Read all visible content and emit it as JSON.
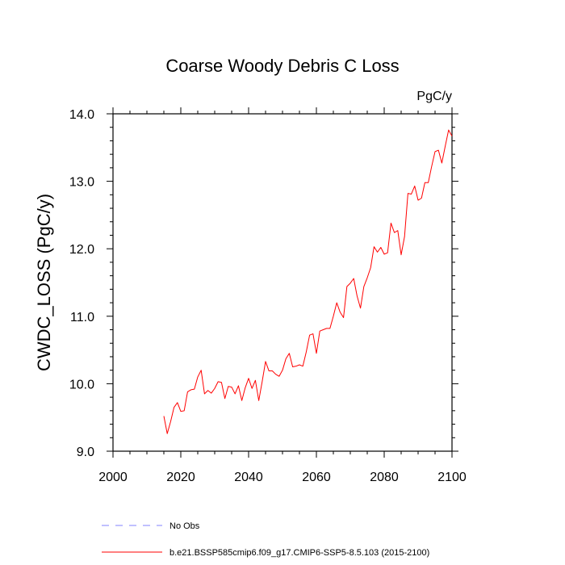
{
  "chart_data": {
    "type": "line",
    "title": "Coarse Woody Debris C Loss",
    "units": "PgC/y",
    "ylabel": "CWDC_LOSS  (PgC/y)",
    "xlabel": "",
    "xlim": [
      2000,
      2100
    ],
    "ylim": [
      9.0,
      14.0
    ],
    "x_ticks": [
      2000,
      2020,
      2040,
      2060,
      2080,
      2100
    ],
    "x_tick_labels": [
      "2000",
      "2020",
      "2040",
      "2060",
      "2080",
      "2100"
    ],
    "y_ticks": [
      9.0,
      10.0,
      11.0,
      12.0,
      13.0,
      14.0
    ],
    "y_tick_labels": [
      "9.0",
      "10.0",
      "11.0",
      "12.0",
      "13.0",
      "14.0"
    ],
    "series": [
      {
        "name": "b.e21.BSSP585cmip6.f09_g17.CMIP6-SSP5-8.5.103 (2015-2100)",
        "color": "#ff0000",
        "x": [
          2015,
          2016,
          2017,
          2018,
          2019,
          2020,
          2021,
          2022,
          2023,
          2024,
          2025,
          2026,
          2027,
          2028,
          2029,
          2030,
          2031,
          2032,
          2033,
          2034,
          2035,
          2036,
          2037,
          2038,
          2039,
          2040,
          2041,
          2042,
          2043,
          2044,
          2045,
          2046,
          2047,
          2048,
          2049,
          2050,
          2051,
          2052,
          2053,
          2054,
          2055,
          2056,
          2057,
          2058,
          2059,
          2060,
          2061,
          2062,
          2063,
          2064,
          2065,
          2066,
          2067,
          2068,
          2069,
          2070,
          2071,
          2072,
          2073,
          2074,
          2075,
          2076,
          2077,
          2078,
          2079,
          2080,
          2081,
          2082,
          2083,
          2084,
          2085,
          2086,
          2087,
          2088,
          2089,
          2090,
          2091,
          2092,
          2093,
          2094,
          2095,
          2096,
          2097,
          2098,
          2099,
          2100
        ],
        "values": [
          9.52,
          9.26,
          9.44,
          9.65,
          9.72,
          9.59,
          9.6,
          9.88,
          9.91,
          9.92,
          10.1,
          10.2,
          9.85,
          9.9,
          9.86,
          9.93,
          10.03,
          10.02,
          9.78,
          9.96,
          9.95,
          9.85,
          9.97,
          9.75,
          9.94,
          10.08,
          9.93,
          10.05,
          9.75,
          10.03,
          10.33,
          10.19,
          10.19,
          10.14,
          10.11,
          10.2,
          10.37,
          10.45,
          10.25,
          10.26,
          10.28,
          10.26,
          10.47,
          10.72,
          10.74,
          10.45,
          10.78,
          10.8,
          10.82,
          10.82,
          11.0,
          11.2,
          11.06,
          10.98,
          11.44,
          11.49,
          11.56,
          11.3,
          11.12,
          11.44,
          11.57,
          11.72,
          12.03,
          11.95,
          12.02,
          11.92,
          11.94,
          12.38,
          12.24,
          12.27,
          11.91,
          12.18,
          12.82,
          12.81,
          12.93,
          12.72,
          12.75,
          12.98,
          12.98,
          13.22,
          13.44,
          13.46,
          13.27,
          13.52,
          13.76,
          13.67
        ]
      }
    ],
    "legend": {
      "placement": "bottom",
      "entries": [
        {
          "label": "No Obs",
          "style": "dashed",
          "color": "#8080ff"
        },
        {
          "label": "b.e21.BSSP585cmip6.f09_g17.CMIP6-SSP5-8.5.103 (2015-2100)",
          "style": "solid",
          "color": "#ff0000"
        }
      ]
    }
  }
}
